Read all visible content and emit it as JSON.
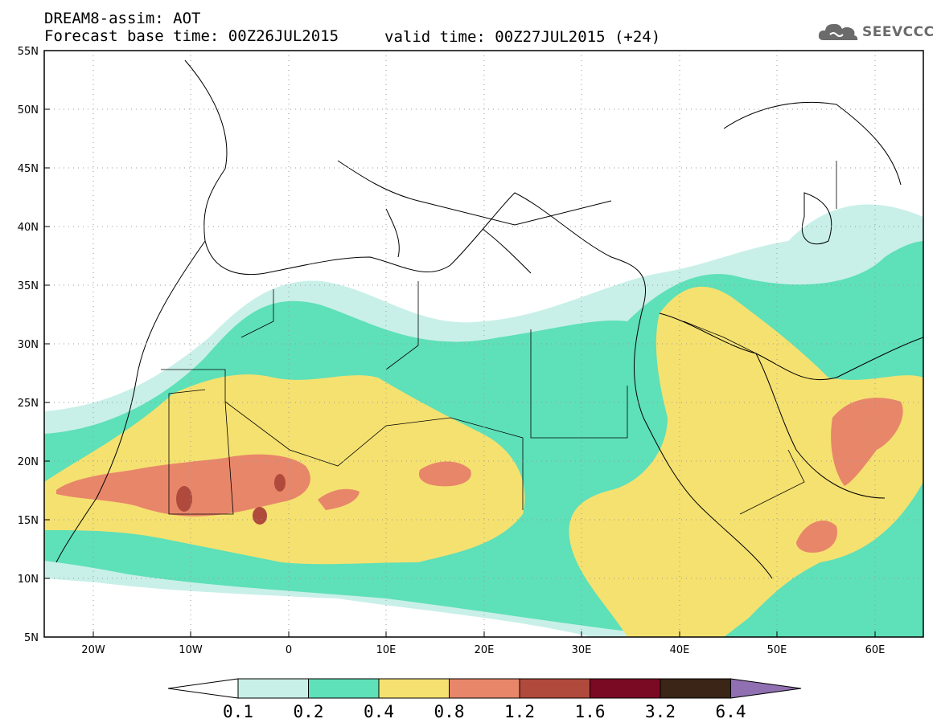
{
  "header": {
    "title_line1": "DREAM8-assim: AOT",
    "title_line2": "Forecast base time: 00Z26JUL2015",
    "valid_time": "valid time: 00Z27JUL2015 (+24)",
    "logo_text": "SEEVCCC",
    "logo_icon": "cloud-icon"
  },
  "map": {
    "lat_labels": [
      "55N",
      "50N",
      "45N",
      "40N",
      "35N",
      "30N",
      "25N",
      "20N",
      "15N",
      "10N",
      "5N"
    ],
    "lon_labels": [
      "20W",
      "10W",
      "0",
      "10E",
      "20E",
      "30E",
      "40E",
      "50E",
      "60E"
    ],
    "lat_range": [
      5,
      55
    ],
    "lon_range": [
      -25,
      65
    ],
    "grid": "dotted"
  },
  "colorbar": {
    "labels": [
      "0.1",
      "0.2",
      "0.4",
      "0.8",
      "1.2",
      "1.6",
      "3.2",
      "6.4"
    ],
    "colors": [
      "#ffffff",
      "#c8f0e8",
      "#5ee0b8",
      "#f5e170",
      "#e8866a",
      "#b04a3c",
      "#7a0a24",
      "#3a2516",
      "#9070b0"
    ]
  }
}
